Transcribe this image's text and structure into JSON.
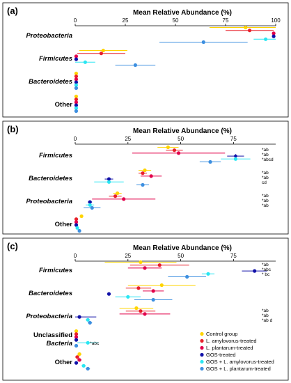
{
  "colors": {
    "Control group": "#FFD400",
    "L. amylovorus-treated": "#E8202A",
    "L. plantarum-treated": "#E2004A",
    "GOS-treated": "#1010A8",
    "GOS + L. amylovorus-treated": "#29E6F2",
    "GOS + L. plantarum-treated": "#3C8FE0"
  },
  "chart_data": [
    {
      "panel": "(a)",
      "type": "scatter",
      "xlabel": "Mean Relative Abundance (%)",
      "xlim": [
        0,
        100
      ],
      "xticks": [
        0,
        25,
        50,
        75,
        100
      ],
      "categories": [
        {
          "name": "Proteobacteria",
          "italic": true,
          "points": [
            {
              "group": "Control group",
              "value": 85,
              "err": 18
            },
            {
              "group": "L. amylovorus-treated",
              "value": 87,
              "err": 12
            },
            {
              "group": "L. plantarum-treated",
              "value": 99,
              "err": 0.5
            },
            {
              "group": "GOS-treated",
              "value": 99,
              "err": 0.5
            },
            {
              "group": "GOS + L. amylovorus-treated",
              "value": 95,
              "err": 6
            },
            {
              "group": "GOS + L. plantarum-treated",
              "value": 64,
              "err": 22
            }
          ]
        },
        {
          "name": "Firmicutes",
          "italic": true,
          "points": [
            {
              "group": "Control group",
              "value": 14,
              "err": 12
            },
            {
              "group": "L. amylovorus-treated",
              "value": 13,
              "err": 12
            },
            {
              "group": "L. plantarum-treated",
              "value": 0.5,
              "err": 0.5
            },
            {
              "group": "GOS-treated",
              "value": 0.5,
              "err": 0.5
            },
            {
              "group": "GOS + L. amylovorus-treated",
              "value": 5,
              "err": 5
            },
            {
              "group": "GOS + L. plantarum-treated",
              "value": 30,
              "err": 10
            }
          ]
        },
        {
          "name": "Bacteroidetes",
          "italic": true,
          "points": [
            {
              "group": "Control group",
              "value": 0.5,
              "err": 0
            },
            {
              "group": "L. amylovorus-treated",
              "value": 0.5,
              "err": 0
            },
            {
              "group": "L. plantarum-treated",
              "value": 0.5,
              "err": 0
            },
            {
              "group": "GOS-treated",
              "value": 0.5,
              "err": 0
            },
            {
              "group": "GOS + L. amylovorus-treated",
              "value": 0.5,
              "err": 0
            },
            {
              "group": "GOS + L. plantarum-treated",
              "value": 0.5,
              "err": 0
            }
          ]
        },
        {
          "name": "Other",
          "italic": false,
          "points": [
            {
              "group": "Control group",
              "value": 0.5,
              "err": 0
            },
            {
              "group": "L. amylovorus-treated",
              "value": 0.5,
              "err": 0
            },
            {
              "group": "L. plantarum-treated",
              "value": 0.5,
              "err": 0
            },
            {
              "group": "GOS-treated",
              "value": 0.5,
              "err": 0
            },
            {
              "group": "GOS + L. amylovorus-treated",
              "value": 0.5,
              "err": 0
            },
            {
              "group": "GOS + L. plantarum-treated",
              "value": 0.5,
              "err": 0
            }
          ]
        }
      ]
    },
    {
      "panel": "(b)",
      "type": "scatter",
      "xlabel": "Mean Relative Abundance (%)",
      "xlim": [
        0,
        95
      ],
      "xticks": [
        0,
        25,
        50,
        75
      ],
      "categories": [
        {
          "name": "Firmicutes",
          "italic": true,
          "annotations": [
            "*ab",
            "*ab",
            "*abcd"
          ],
          "points": [
            {
              "group": "Control group",
              "value": 44,
              "err": 5
            },
            {
              "group": "L. amylovorus-treated",
              "value": 47,
              "err": 4
            },
            {
              "group": "L. plantarum-treated",
              "value": 49,
              "err": 22
            },
            {
              "group": "GOS-treated",
              "value": 76,
              "err": 4
            },
            {
              "group": "GOS + L. amylovorus-treated",
              "value": 76,
              "err": 7
            },
            {
              "group": "GOS + L. plantarum-treated",
              "value": 64,
              "err": 5
            }
          ]
        },
        {
          "name": "Bacteroidetes",
          "italic": true,
          "annotations": [
            "*ab",
            "*ab",
            "cd"
          ],
          "points": [
            {
              "group": "Control group",
              "value": 33,
              "err": 3
            },
            {
              "group": "L. amylovorus-treated",
              "value": 32,
              "err": 2
            },
            {
              "group": "L. plantarum-treated",
              "value": 36,
              "err": 5
            },
            {
              "group": "GOS-treated",
              "value": 16,
              "err": 2
            },
            {
              "group": "GOS + L. amylovorus-treated",
              "value": 16,
              "err": 7
            },
            {
              "group": "GOS + L. plantarum-treated",
              "value": 32,
              "err": 3
            }
          ]
        },
        {
          "name": "Proteobacteria",
          "italic": true,
          "annotations": [
            "*ab",
            "*ab",
            "*ab"
          ],
          "points": [
            {
              "group": "Control group",
              "value": 20,
              "err": 2
            },
            {
              "group": "L. amylovorus-treated",
              "value": 19,
              "err": 3
            },
            {
              "group": "L. plantarum-treated",
              "value": 23,
              "err": 15
            },
            {
              "group": "GOS-treated",
              "value": 7,
              "err": 1
            },
            {
              "group": "GOS + L. amylovorus-treated",
              "value": 7,
              "err": 2
            },
            {
              "group": "GOS + L. plantarum-treated",
              "value": 8,
              "err": 4
            }
          ]
        },
        {
          "name": "Other",
          "italic": false,
          "points": [
            {
              "group": "Control group",
              "value": 3,
              "err": 0
            },
            {
              "group": "L. amylovorus-treated",
              "value": 0.5,
              "err": 0
            },
            {
              "group": "L. plantarum-treated",
              "value": 0.5,
              "err": 0
            },
            {
              "group": "GOS-treated",
              "value": 0.5,
              "err": 0
            },
            {
              "group": "GOS + L. amylovorus-treated",
              "value": 1,
              "err": 0
            },
            {
              "group": "GOS + L. plantarum-treated",
              "value": 2,
              "err": 0
            }
          ]
        }
      ]
    },
    {
      "panel": "(c)",
      "type": "scatter",
      "xlabel": "Mean Relative Abundance (%)",
      "xlim": [
        0,
        95
      ],
      "xticks": [
        0,
        25,
        50,
        75
      ],
      "legend_position": "bottom-right",
      "categories": [
        {
          "name": "Firmicutes",
          "italic": true,
          "annotations": [
            "*ab",
            "*abc",
            "* bc"
          ],
          "points": [
            {
              "group": "Control group",
              "value": 31,
              "err": 17
            },
            {
              "group": "L. amylovorus-treated",
              "value": 40,
              "err": 14
            },
            {
              "group": "L. plantarum-treated",
              "value": 33,
              "err": 8
            },
            {
              "group": "GOS-treated",
              "value": 85,
              "err": 6
            },
            {
              "group": "GOS + L. amylovorus-treated",
              "value": 63,
              "err": 3
            },
            {
              "group": "GOS + L. plantarum-treated",
              "value": 53,
              "err": 9
            }
          ]
        },
        {
          "name": "Bacteroidetes",
          "italic": true,
          "points": [
            {
              "group": "Control group",
              "value": 41,
              "err": 16
            },
            {
              "group": "L. amylovorus-treated",
              "value": 30,
              "err": 6
            },
            {
              "group": "L. plantarum-treated",
              "value": 37,
              "err": 5
            },
            {
              "group": "GOS-treated",
              "value": 16,
              "err": 0.5
            },
            {
              "group": "GOS + L. amylovorus-treated",
              "value": 25,
              "err": 6
            },
            {
              "group": "GOS + L. plantarum-treated",
              "value": 37,
              "err": 9
            }
          ]
        },
        {
          "name": "Proteobacteria",
          "italic": true,
          "annotations": [
            "*ab",
            "*ab",
            "*ab d"
          ],
          "points": [
            {
              "group": "Control group",
              "value": 29,
              "err": 8
            },
            {
              "group": "L. amylovorus-treated",
              "value": 31,
              "err": 7
            },
            {
              "group": "L. plantarum-treated",
              "value": 33,
              "err": 12
            },
            {
              "group": "GOS-treated",
              "value": 2,
              "err": 8
            },
            {
              "group": "GOS + L. amylovorus-treated",
              "value": 6,
              "err": 1
            },
            {
              "group": "GOS + L. plantarum-treated",
              "value": 7,
              "err": 1
            }
          ]
        },
        {
          "name": "Unclassified|Bacteria",
          "italic": "second-line",
          "annotations": [
            "*abc"
          ],
          "points": [
            {
              "group": "Control group",
              "value": 0.5,
              "err": 0
            },
            {
              "group": "L. amylovorus-treated",
              "value": 0.5,
              "err": 0
            },
            {
              "group": "L. plantarum-treated",
              "value": 0.5,
              "err": 0
            },
            {
              "group": "GOS-treated",
              "value": 0.5,
              "err": 0
            },
            {
              "group": "GOS + L. amylovorus-treated",
              "value": 6,
              "err": 5
            },
            {
              "group": "GOS + L. plantarum-treated",
              "value": 0.5,
              "err": 0
            }
          ]
        },
        {
          "name": "Other",
          "italic": false,
          "points": [
            {
              "group": "Control group",
              "value": 2,
              "err": 1
            },
            {
              "group": "L. amylovorus-treated",
              "value": 1,
              "err": 1
            },
            {
              "group": "L. plantarum-treated",
              "value": 2,
              "err": 1
            },
            {
              "group": "GOS-treated",
              "value": 0.5,
              "err": 0
            },
            {
              "group": "GOS + L. amylovorus-treated",
              "value": 4,
              "err": 1
            },
            {
              "group": "GOS + L. plantarum-treated",
              "value": 6,
              "err": 1
            }
          ]
        }
      ]
    }
  ],
  "legend": [
    {
      "label": "Control group",
      "italic_part": ""
    },
    {
      "label": "L. amylovorus-treated",
      "italic_part": "L. amylovorus"
    },
    {
      "label": "L. plantarum-treated",
      "italic_part": "L. plantarum"
    },
    {
      "label": "GOS-treated",
      "italic_part": ""
    },
    {
      "label": "GOS + L. amylovorus-treated",
      "italic_part": "L. amylovorus"
    },
    {
      "label": "GOS + L. plantarum-treated",
      "italic_part": "L. plantarum"
    }
  ]
}
